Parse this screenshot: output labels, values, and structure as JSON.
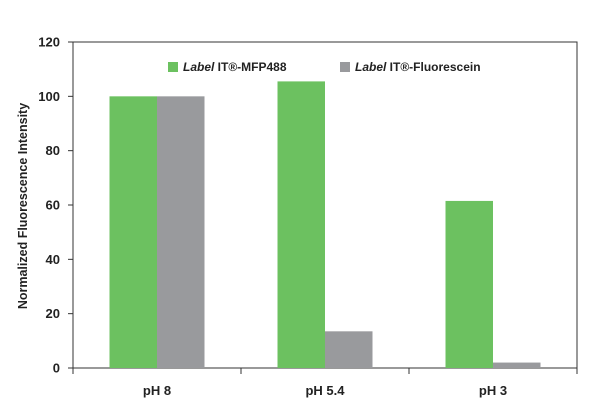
{
  "chart_data": {
    "type": "bar",
    "title": "",
    "xlabel": "",
    "ylabel": "Normalized Fluorescence Intensity",
    "ylim": [
      0,
      120
    ],
    "yticks": [
      0,
      20,
      40,
      60,
      80,
      100,
      120
    ],
    "categories": [
      "pH 8",
      "pH 5.4",
      "pH 3"
    ],
    "grid": false,
    "legend_position": "top",
    "series": [
      {
        "name": "Label IT®-MFP488",
        "name_italic_part": "Label",
        "name_rest": " IT®-MFP488",
        "color": "#6cc160",
        "values": [
          100,
          105.5,
          61.5
        ]
      },
      {
        "name": "Label IT®-Fluorescein",
        "name_italic_part": "Label",
        "name_rest": " IT®-Fluorescein",
        "color": "#999a9d",
        "values": [
          100,
          13.5,
          2
        ]
      }
    ]
  }
}
